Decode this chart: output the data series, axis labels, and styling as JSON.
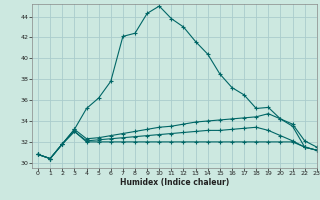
{
  "title": "",
  "xlabel": "Humidex (Indice chaleur)",
  "bg_color": "#cce8e0",
  "grid_color": "#aacccc",
  "line_color": "#006666",
  "xlim": [
    -0.5,
    23
  ],
  "ylim": [
    29.5,
    45.2
  ],
  "yticks": [
    30,
    32,
    34,
    36,
    38,
    40,
    42,
    44
  ],
  "xticks": [
    0,
    1,
    2,
    3,
    4,
    5,
    6,
    7,
    8,
    9,
    10,
    11,
    12,
    13,
    14,
    15,
    16,
    17,
    18,
    19,
    20,
    21,
    22,
    23
  ],
  "series1_x": [
    0,
    1,
    2,
    3,
    4,
    5,
    6,
    7,
    8,
    9,
    10,
    11,
    12,
    13,
    14,
    15,
    16,
    17,
    18,
    19,
    20,
    21,
    22,
    23
  ],
  "series1_y": [
    30.8,
    30.4,
    31.8,
    33.2,
    35.2,
    36.2,
    37.8,
    42.1,
    42.4,
    44.3,
    45.0,
    43.8,
    43.0,
    41.6,
    40.4,
    38.5,
    37.2,
    36.5,
    35.2,
    35.3,
    34.2,
    33.5,
    31.5,
    31.2
  ],
  "series2_x": [
    0,
    1,
    2,
    3,
    4,
    5,
    6,
    7,
    8,
    9,
    10,
    11,
    12,
    13,
    14,
    15,
    16,
    17,
    18,
    19,
    20,
    21,
    22,
    23
  ],
  "series2_y": [
    30.8,
    30.4,
    31.8,
    33.2,
    32.3,
    32.4,
    32.6,
    32.8,
    33.0,
    33.2,
    33.4,
    33.5,
    33.7,
    33.9,
    34.0,
    34.1,
    34.2,
    34.3,
    34.4,
    34.7,
    34.2,
    33.7,
    32.1,
    31.5
  ],
  "series3_x": [
    0,
    1,
    2,
    3,
    4,
    5,
    6,
    7,
    8,
    9,
    10,
    11,
    12,
    13,
    14,
    15,
    16,
    17,
    18,
    19,
    20,
    21,
    22,
    23
  ],
  "series3_y": [
    30.8,
    30.4,
    31.8,
    33.0,
    32.1,
    32.2,
    32.3,
    32.4,
    32.5,
    32.6,
    32.7,
    32.8,
    32.9,
    33.0,
    33.1,
    33.1,
    33.2,
    33.3,
    33.4,
    33.1,
    32.6,
    32.1,
    31.5,
    31.2
  ],
  "series4_x": [
    0,
    1,
    2,
    3,
    4,
    5,
    6,
    7,
    8,
    9,
    10,
    11,
    12,
    13,
    14,
    15,
    16,
    17,
    18,
    19,
    20,
    21,
    22,
    23
  ],
  "series4_y": [
    30.8,
    30.4,
    31.8,
    33.0,
    32.0,
    32.0,
    32.0,
    32.0,
    32.0,
    32.0,
    32.0,
    32.0,
    32.0,
    32.0,
    32.0,
    32.0,
    32.0,
    32.0,
    32.0,
    32.0,
    32.0,
    32.0,
    31.5,
    31.2
  ]
}
